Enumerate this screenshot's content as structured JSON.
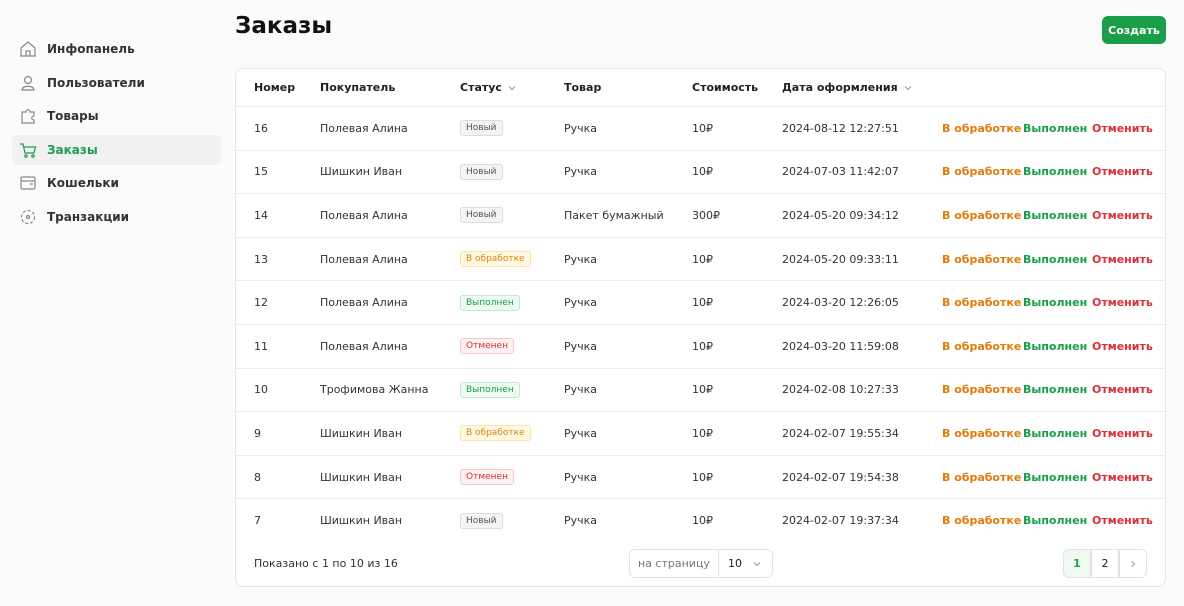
{
  "sidebar": {
    "items": [
      {
        "label": "Инфопанель",
        "icon": "home"
      },
      {
        "label": "Пользователи",
        "icon": "user"
      },
      {
        "label": "Товары",
        "icon": "puzzle"
      },
      {
        "label": "Заказы",
        "icon": "cart"
      },
      {
        "label": "Кошельки",
        "icon": "wallet"
      },
      {
        "label": "Транзакции",
        "icon": "cycle"
      }
    ],
    "active": 3
  },
  "header": {
    "title": "Заказы",
    "create_button": "Создать"
  },
  "table": {
    "columns": [
      {
        "label": "Номер"
      },
      {
        "label": "Покупатель"
      },
      {
        "label": "Статус",
        "sortable": true
      },
      {
        "label": "Товар"
      },
      {
        "label": "Стоимость"
      },
      {
        "label": "Дата оформления",
        "sortable": true
      }
    ],
    "rows": [
      {
        "id": 16,
        "buyer": "Полевая Алина",
        "status": "Новый",
        "status_tone": "gray",
        "product": "Ручка",
        "cost": "10₽",
        "date": "2024-08-12 12:27:51"
      },
      {
        "id": 15,
        "buyer": "Шишкин Иван",
        "status": "Новый",
        "status_tone": "gray",
        "product": "Ручка",
        "cost": "10₽",
        "date": "2024-07-03 11:42:07"
      },
      {
        "id": 14,
        "buyer": "Полевая Алина",
        "status": "Новый",
        "status_tone": "gray",
        "product": "Пакет бумажный",
        "cost": "300₽",
        "date": "2024-05-20 09:34:12"
      },
      {
        "id": 13,
        "buyer": "Полевая Алина",
        "status": "В обработке",
        "status_tone": "yellow",
        "product": "Ручка",
        "cost": "10₽",
        "date": "2024-05-20 09:33:11"
      },
      {
        "id": 12,
        "buyer": "Полевая Алина",
        "status": "Выполнен",
        "status_tone": "green",
        "product": "Ручка",
        "cost": "10₽",
        "date": "2024-03-20 12:26:05"
      },
      {
        "id": 11,
        "buyer": "Полевая Алина",
        "status": "Отменен",
        "status_tone": "red",
        "product": "Ручка",
        "cost": "10₽",
        "date": "2024-03-20 11:59:08"
      },
      {
        "id": 10,
        "buyer": "Трофимова Жанна",
        "status": "Выполнен",
        "status_tone": "green",
        "product": "Ручка",
        "cost": "10₽",
        "date": "2024-02-08 10:27:33"
      },
      {
        "id": 9,
        "buyer": "Шишкин Иван",
        "status": "В обработке",
        "status_tone": "yellow",
        "product": "Ручка",
        "cost": "10₽",
        "date": "2024-02-07 19:55:34"
      },
      {
        "id": 8,
        "buyer": "Шишкин Иван",
        "status": "Отменен",
        "status_tone": "red",
        "product": "Ручка",
        "cost": "10₽",
        "date": "2024-02-07 19:54:38"
      },
      {
        "id": 7,
        "buyer": "Шишкин Иван",
        "status": "Новый",
        "status_tone": "gray",
        "product": "Ручка",
        "cost": "10₽",
        "date": "2024-02-07 19:37:34"
      }
    ],
    "actions": [
      {
        "label": "В обработке",
        "color": "#e07b0c"
      },
      {
        "label": "Выполнен",
        "color": "#1a9e4a"
      },
      {
        "label": "Отменить",
        "color": "#d9303a"
      }
    ]
  },
  "footer": {
    "summary": "Показано с 1 по 10 из 16",
    "per_page_label": "на страницу",
    "per_page": 10,
    "pages": [
      1,
      2
    ],
    "current_page": 1
  }
}
